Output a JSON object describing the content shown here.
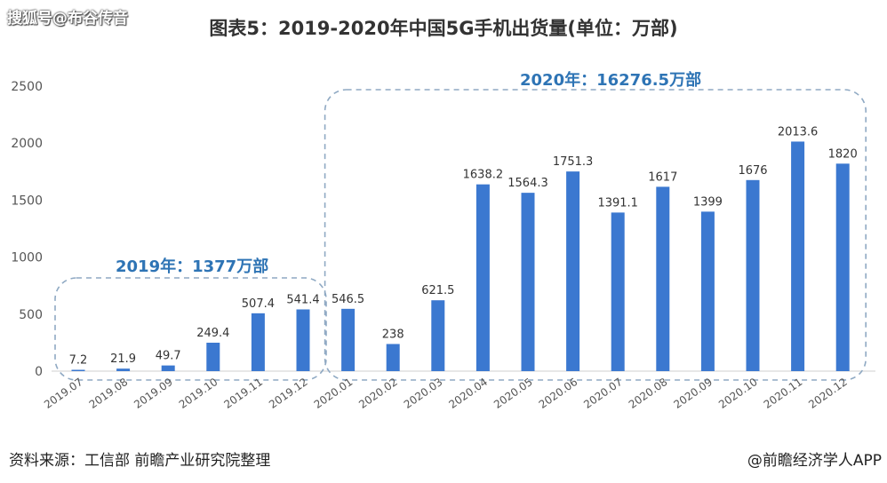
{
  "header": {
    "watermark": "搜狐号@布谷传音",
    "title": "图表5：2019-2020年中国5G手机出货量(单位：万部)"
  },
  "footer": {
    "source": "资料来源：工信部 前瞻产业研究院整理",
    "credit": "@前瞻经济学人APP"
  },
  "annotations": {
    "box_2019": "2019年：1377万部",
    "box_2020": "2020年：16276.5万部"
  },
  "colors": {
    "bar": "#3b78d0",
    "box_border": "#8fa9c3",
    "label": "#2e74b5"
  },
  "chart_data": {
    "type": "bar",
    "title": "图表5：2019-2020年中国5G手机出货量(单位：万部)",
    "xlabel": "",
    "ylabel": "",
    "ylim": [
      0,
      2500
    ],
    "yticks": [
      "0",
      "500",
      "1000",
      "1500",
      "2000",
      "2500"
    ],
    "grid": false,
    "categories": [
      "2019.07",
      "2019.08",
      "2019.09",
      "2019.10",
      "2019.11",
      "2019.12",
      "2020.01",
      "2020.02",
      "2020.03",
      "2020.04",
      "2020.05",
      "2020.06",
      "2020.07",
      "2020.08",
      "2020.09",
      "2020.10",
      "2020.11",
      "2020.12"
    ],
    "values": [
      7.2,
      21.9,
      49.7,
      249.4,
      507.4,
      541.4,
      546.5,
      238,
      621.5,
      1638.2,
      1564.3,
      1751.3,
      1391.1,
      1617,
      1399,
      1676,
      2013.6,
      1820
    ],
    "value_labels": [
      "7.2",
      "21.9",
      "49.7",
      "249.4",
      "507.4",
      "541.4",
      "546.5",
      "238",
      "621.5",
      "1638.2",
      "1564.3",
      "1751.3",
      "1391.1",
      "1617",
      "1399",
      "1676",
      "2013.6",
      "1820"
    ]
  }
}
